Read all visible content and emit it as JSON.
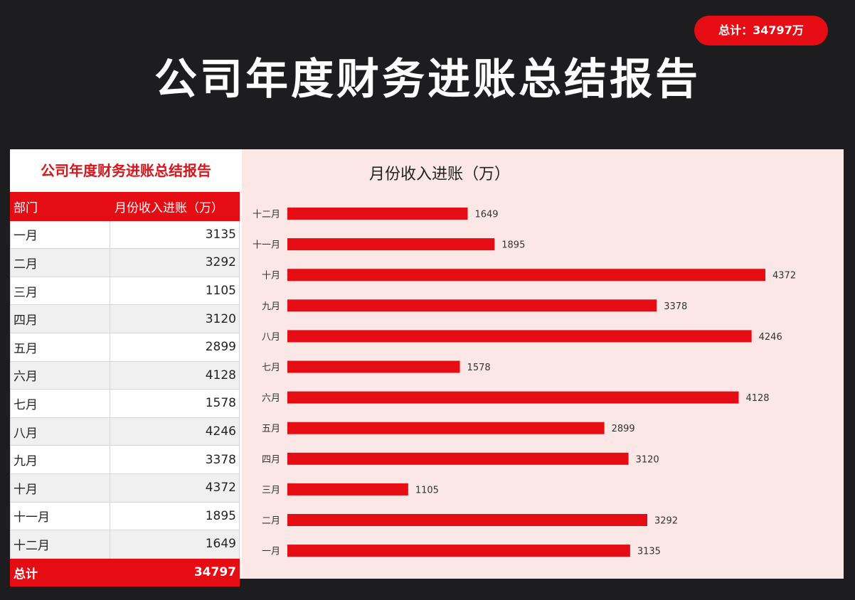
{
  "title": "公司年度财务进账总结报告",
  "table": {
    "title": "公司年度财务进账总结报告",
    "headers": [
      "部门",
      "月份收入进账（万）"
    ],
    "rows": [
      [
        "一月",
        "3135"
      ],
      [
        "二月",
        "3292"
      ],
      [
        "三月",
        "1105"
      ],
      [
        "四月",
        "3120"
      ],
      [
        "五月",
        "2899"
      ],
      [
        "六月",
        "4128"
      ],
      [
        "七月",
        "1578"
      ],
      [
        "八月",
        "4246"
      ],
      [
        "九月",
        "3378"
      ],
      [
        "十月",
        "4372"
      ],
      [
        "十一月",
        "1895"
      ],
      [
        "十二月",
        "1649"
      ]
    ],
    "total_label": "总计",
    "total_value": "34797"
  },
  "total_badge": "总计：34797万",
  "colors": {
    "accent": "#e60c14",
    "background": "#1d1d1f",
    "chart_bg": "#fbe8e6"
  },
  "chart_data": {
    "type": "bar",
    "orientation": "horizontal",
    "title": "月份收入进账（万）",
    "categories": [
      "十二月",
      "十一月",
      "十月",
      "九月",
      "八月",
      "七月",
      "六月",
      "五月",
      "四月",
      "三月",
      "二月",
      "一月"
    ],
    "values": [
      1649,
      1895,
      4372,
      3378,
      4246,
      1578,
      4128,
      2899,
      3120,
      1105,
      3292,
      3135
    ],
    "xlim": [
      0,
      4372
    ],
    "grid": false,
    "legend": "none",
    "data_labels": true
  }
}
